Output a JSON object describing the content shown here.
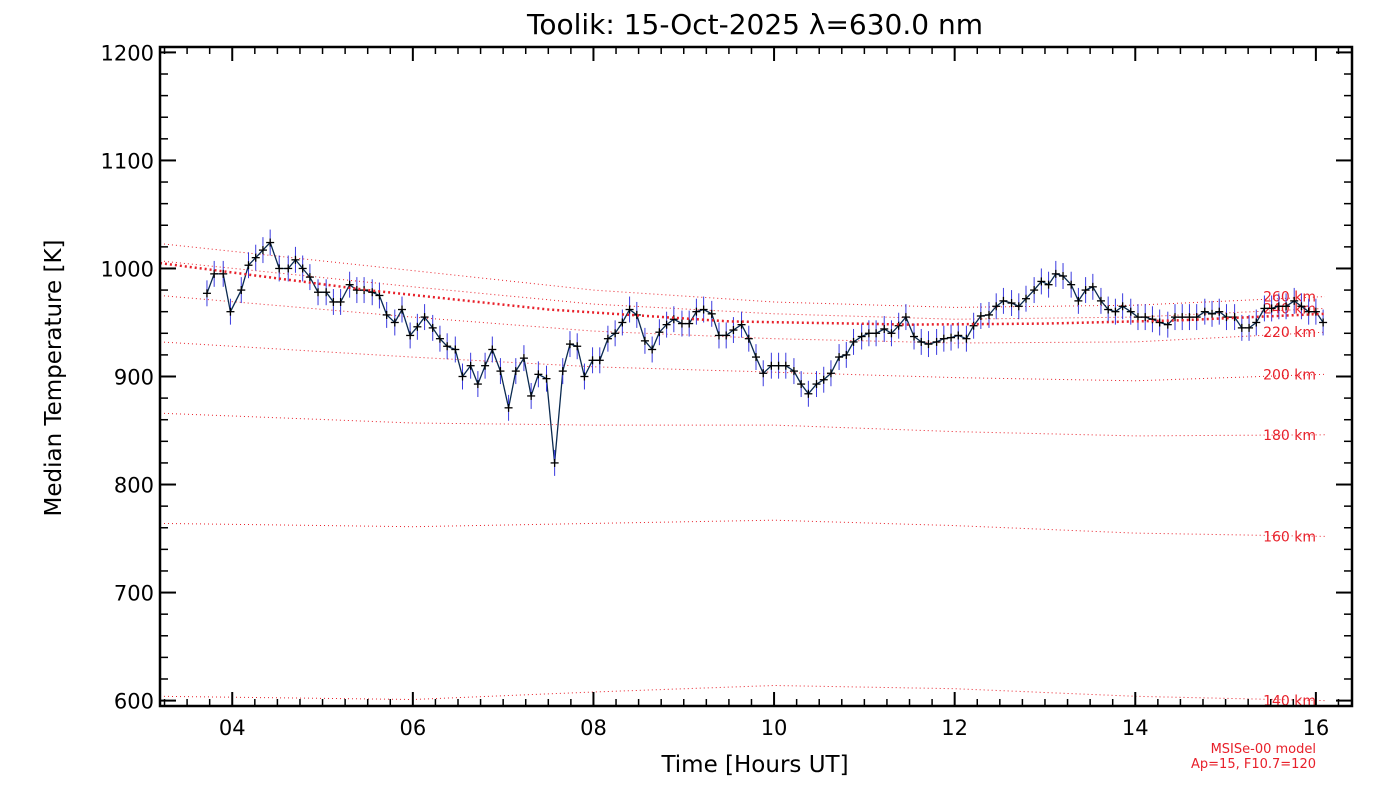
{
  "chart_data": {
    "type": "line",
    "title": "Toolik: 15-Oct-2025 λ=630.0 nm",
    "xlabel": "Time [Hours UT]",
    "ylabel": "Median Temperature [K]",
    "xlim": [
      3.2,
      16.4
    ],
    "ylim": [
      595,
      1205
    ],
    "x_ticks": [
      4,
      6,
      8,
      10,
      12,
      14,
      16
    ],
    "x_tick_labels": [
      "04",
      "06",
      "08",
      "10",
      "12",
      "14",
      "16"
    ],
    "y_ticks": [
      600,
      700,
      800,
      900,
      1000,
      1100,
      1200
    ],
    "y_tick_labels": [
      "600",
      "700",
      "800",
      "900",
      "1000",
      "1100",
      "1200"
    ],
    "series": [
      {
        "color": "#0a2a50",
        "marker": "plus",
        "error_bar_color": "#3a3adf",
        "error": 12,
        "points": [
          [
            3.72,
            977
          ],
          [
            3.8,
            995
          ],
          [
            3.9,
            995
          ],
          [
            3.98,
            960
          ],
          [
            4.1,
            980
          ],
          [
            4.18,
            1003
          ],
          [
            4.26,
            1010
          ],
          [
            4.34,
            1017
          ],
          [
            4.42,
            1024
          ],
          [
            4.52,
            1000
          ],
          [
            4.62,
            1000
          ],
          [
            4.7,
            1008
          ],
          [
            4.78,
            1000
          ],
          [
            4.86,
            992
          ],
          [
            4.95,
            978
          ],
          [
            5.04,
            978
          ],
          [
            5.12,
            969
          ],
          [
            5.2,
            969
          ],
          [
            5.3,
            985
          ],
          [
            5.38,
            980
          ],
          [
            5.46,
            980
          ],
          [
            5.55,
            978
          ],
          [
            5.63,
            975
          ],
          [
            5.71,
            957
          ],
          [
            5.8,
            950
          ],
          [
            5.88,
            962
          ],
          [
            5.97,
            938
          ],
          [
            6.05,
            946
          ],
          [
            6.13,
            955
          ],
          [
            6.22,
            945
          ],
          [
            6.3,
            935
          ],
          [
            6.38,
            928
          ],
          [
            6.47,
            925
          ],
          [
            6.55,
            900
          ],
          [
            6.64,
            910
          ],
          [
            6.72,
            893
          ],
          [
            6.8,
            910
          ],
          [
            6.88,
            925
          ],
          [
            6.97,
            905
          ],
          [
            7.06,
            871
          ],
          [
            7.14,
            905
          ],
          [
            7.23,
            917
          ],
          [
            7.31,
            882
          ],
          [
            7.39,
            902
          ],
          [
            7.48,
            898
          ],
          [
            7.57,
            820
          ],
          [
            7.66,
            905
          ],
          [
            7.74,
            930
          ],
          [
            7.82,
            928
          ],
          [
            7.9,
            900
          ],
          [
            7.99,
            915
          ],
          [
            8.07,
            915
          ],
          [
            8.16,
            935
          ],
          [
            8.24,
            940
          ],
          [
            8.32,
            950
          ],
          [
            8.4,
            962
          ],
          [
            8.48,
            957
          ],
          [
            8.57,
            933
          ],
          [
            8.65,
            925
          ],
          [
            8.73,
            941
          ],
          [
            8.81,
            948
          ],
          [
            8.89,
            953
          ],
          [
            8.98,
            949
          ],
          [
            9.06,
            949
          ],
          [
            9.14,
            960
          ],
          [
            9.22,
            962
          ],
          [
            9.31,
            958
          ],
          [
            9.39,
            938
          ],
          [
            9.47,
            938
          ],
          [
            9.55,
            943
          ],
          [
            9.64,
            948
          ],
          [
            9.72,
            935
          ],
          [
            9.8,
            918
          ],
          [
            9.88,
            903
          ],
          [
            9.97,
            910
          ],
          [
            10.05,
            910
          ],
          [
            10.13,
            910
          ],
          [
            10.22,
            905
          ],
          [
            10.3,
            893
          ],
          [
            10.38,
            884
          ],
          [
            10.47,
            893
          ],
          [
            10.55,
            897
          ],
          [
            10.63,
            903
          ],
          [
            10.72,
            918
          ],
          [
            10.8,
            920
          ],
          [
            10.88,
            932
          ],
          [
            10.97,
            937
          ],
          [
            11.05,
            940
          ],
          [
            11.13,
            940
          ],
          [
            11.22,
            944
          ],
          [
            11.3,
            940
          ],
          [
            11.38,
            947
          ],
          [
            11.46,
            955
          ],
          [
            11.55,
            937
          ],
          [
            11.63,
            932
          ],
          [
            11.71,
            930
          ],
          [
            11.8,
            932
          ],
          [
            11.88,
            935
          ],
          [
            11.96,
            936
          ],
          [
            12.04,
            938
          ],
          [
            12.13,
            935
          ],
          [
            12.21,
            947
          ],
          [
            12.29,
            956
          ],
          [
            12.38,
            957
          ],
          [
            12.46,
            965
          ],
          [
            12.54,
            970
          ],
          [
            12.63,
            968
          ],
          [
            12.71,
            965
          ],
          [
            12.79,
            972
          ],
          [
            12.88,
            980
          ],
          [
            12.96,
            988
          ],
          [
            13.04,
            985
          ],
          [
            13.12,
            995
          ],
          [
            13.2,
            993
          ],
          [
            13.29,
            985
          ],
          [
            13.37,
            970
          ],
          [
            13.45,
            980
          ],
          [
            13.53,
            983
          ],
          [
            13.62,
            970
          ],
          [
            13.7,
            962
          ],
          [
            13.78,
            960
          ],
          [
            13.86,
            965
          ],
          [
            13.95,
            960
          ],
          [
            14.03,
            955
          ],
          [
            14.11,
            955
          ],
          [
            14.19,
            953
          ],
          [
            14.27,
            950
          ],
          [
            14.36,
            948
          ],
          [
            14.44,
            955
          ],
          [
            14.52,
            955
          ],
          [
            14.6,
            955
          ],
          [
            14.68,
            955
          ],
          [
            14.77,
            960
          ],
          [
            14.85,
            958
          ],
          [
            14.93,
            960
          ],
          [
            15.01,
            955
          ],
          [
            15.1,
            955
          ],
          [
            15.18,
            945
          ],
          [
            15.26,
            945
          ],
          [
            15.34,
            950
          ],
          [
            15.43,
            963
          ],
          [
            15.51,
            963
          ],
          [
            15.59,
            965
          ],
          [
            15.67,
            965
          ],
          [
            15.76,
            970
          ],
          [
            15.84,
            965
          ],
          [
            15.92,
            960
          ],
          [
            16.0,
            960
          ],
          [
            16.08,
            950
          ]
        ]
      },
      {
        "color": "#e8202a",
        "style": "dotted-bold",
        "points": [
          [
            3.2,
            1005
          ],
          [
            5.5,
            980
          ],
          [
            7.5,
            962
          ],
          [
            9.5,
            951
          ],
          [
            11.5,
            948
          ],
          [
            13.0,
            949
          ],
          [
            14.5,
            952
          ],
          [
            16.1,
            958
          ]
        ]
      }
    ],
    "msis_curves": [
      {
        "label": "140 km",
        "points": [
          [
            3.2,
            604
          ],
          [
            6.0,
            601
          ],
          [
            8.0,
            608
          ],
          [
            10.0,
            614
          ],
          [
            12.0,
            611
          ],
          [
            14.0,
            604
          ],
          [
            16.1,
            600
          ]
        ]
      },
      {
        "label": "160 km",
        "points": [
          [
            3.2,
            764
          ],
          [
            6.0,
            761
          ],
          [
            8.0,
            764
          ],
          [
            10.0,
            767
          ],
          [
            12.0,
            762
          ],
          [
            14.0,
            755
          ],
          [
            16.1,
            752
          ]
        ]
      },
      {
        "label": "180 km",
        "points": [
          [
            3.2,
            866
          ],
          [
            6.0,
            857
          ],
          [
            8.0,
            855
          ],
          [
            10.0,
            855
          ],
          [
            12.0,
            849
          ],
          [
            14.0,
            845
          ],
          [
            16.1,
            846
          ]
        ]
      },
      {
        "label": "200 km",
        "points": [
          [
            3.2,
            932
          ],
          [
            6.0,
            918
          ],
          [
            8.0,
            909
          ],
          [
            10.0,
            904
          ],
          [
            12.0,
            899
          ],
          [
            14.0,
            896
          ],
          [
            16.1,
            902
          ]
        ]
      },
      {
        "label": "220 km",
        "points": [
          [
            3.2,
            975
          ],
          [
            6.0,
            955
          ],
          [
            8.0,
            942
          ],
          [
            10.0,
            935
          ],
          [
            12.0,
            931
          ],
          [
            14.0,
            932
          ],
          [
            16.1,
            941
          ]
        ]
      },
      {
        "label": "240 km",
        "points": [
          [
            3.2,
            1007
          ],
          [
            6.0,
            983
          ],
          [
            8.0,
            967
          ],
          [
            10.0,
            958
          ],
          [
            12.0,
            953
          ],
          [
            14.0,
            955
          ],
          [
            16.1,
            963
          ]
        ]
      },
      {
        "label": "260 km",
        "points": [
          [
            3.2,
            1023
          ],
          [
            6.0,
            998
          ],
          [
            8.0,
            980
          ],
          [
            10.0,
            969
          ],
          [
            12.0,
            964
          ],
          [
            14.0,
            966
          ],
          [
            16.1,
            974
          ]
        ]
      }
    ],
    "model_label": "MSISe-00 model",
    "model_params": "Ap=15, F10.7=120",
    "grid": false
  }
}
